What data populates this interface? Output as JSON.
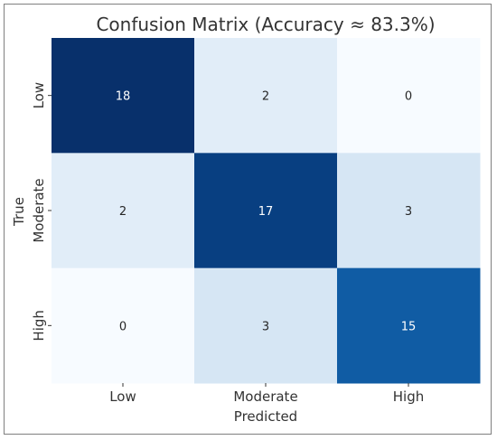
{
  "chart_data": {
    "type": "heatmap",
    "title": "Confusion Matrix (Accuracy ≈ 83.3%)",
    "xlabel": "Predicted",
    "ylabel": "True",
    "x_categories": [
      "Low",
      "Moderate",
      "High"
    ],
    "y_categories": [
      "Low",
      "Moderate",
      "High"
    ],
    "values": [
      [
        18,
        2,
        0
      ],
      [
        2,
        17,
        3
      ],
      [
        0,
        3,
        15
      ]
    ],
    "colormap": "Blues",
    "grid": false,
    "colorbar": false
  }
}
